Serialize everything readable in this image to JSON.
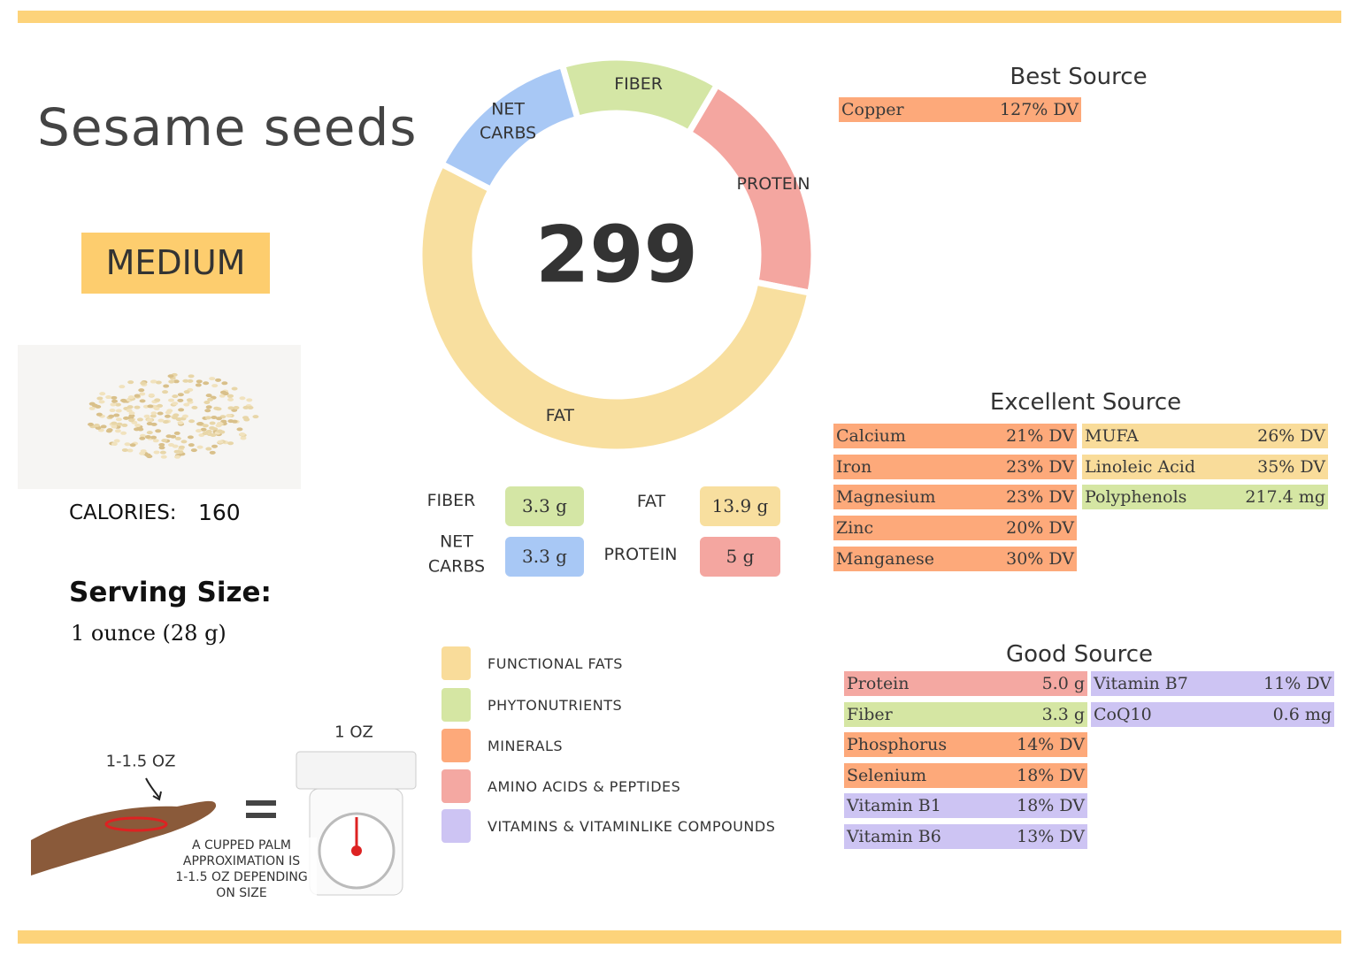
{
  "header": {
    "title": "Sesame seeds",
    "badge": "MEDIUM"
  },
  "calories": {
    "label": "CALORIES:",
    "value": "160"
  },
  "serving": {
    "label": "Serving Size:",
    "value": "1 ounce (28 g)"
  },
  "illustration": {
    "palm_label": "1-1.5 OZ",
    "scale_label": "1 OZ",
    "note": [
      "A CUPPED PALM",
      "APPROXIMATION IS",
      "1-1.5 OZ DEPENDING",
      "ON SIZE"
    ]
  },
  "donut": {
    "center": "299"
  },
  "macros": [
    {
      "name": "FIBER",
      "value": 3.3,
      "value_label": "3.3 g",
      "color": "#d4e6a5"
    },
    {
      "name": "PROTEIN",
      "value": 5,
      "value_label": "5 g",
      "color": "#f4a6a0"
    },
    {
      "name": "FAT",
      "value": 13.9,
      "value_label": "13.9 g",
      "color": "#f8df9f"
    },
    {
      "name": "NET CARBS",
      "value": 3.3,
      "value_label": "3.3 g",
      "color": "#a8c8f5"
    }
  ],
  "legend": [
    {
      "label": "FUNCTIONAL FATS",
      "color": "#f9dc9a"
    },
    {
      "label": "PHYTONUTRIENTS",
      "color": "#d5e6a3"
    },
    {
      "label": "MINERALS",
      "color": "#fda97a"
    },
    {
      "label": "AMINO ACIDS & PEPTIDES",
      "color": "#f4a8a2"
    },
    {
      "label": "VITAMINS & VITAMINLIKE COMPOUNDS",
      "color": "#cdc4f3"
    }
  ],
  "sources": [
    {
      "title": "Best Source",
      "columns": [
        [
          {
            "name": "Copper",
            "amount": "127% DV",
            "color": "#fda97a"
          }
        ]
      ]
    },
    {
      "title": "Excellent Source",
      "columns": [
        [
          {
            "name": "Calcium",
            "amount": "21% DV",
            "color": "#fda97a"
          },
          {
            "name": "Iron",
            "amount": "23% DV",
            "color": "#fda97a"
          },
          {
            "name": "Magnesium",
            "amount": "23% DV",
            "color": "#fda97a"
          },
          {
            "name": "Zinc",
            "amount": "20% DV",
            "color": "#fda97a"
          },
          {
            "name": "Manganese",
            "amount": "30% DV",
            "color": "#fda97a"
          }
        ],
        [
          {
            "name": "MUFA",
            "amount": "26% DV",
            "color": "#f9dc9a"
          },
          {
            "name": "Linoleic Acid",
            "amount": "35% DV",
            "color": "#f9dc9a"
          },
          {
            "name": "Polyphenols",
            "amount": "217.4 mg",
            "color": "#d5e6a3"
          }
        ]
      ]
    },
    {
      "title": "Good Source",
      "columns": [
        [
          {
            "name": "Protein",
            "amount": "5.0 g",
            "color": "#f4a8a2"
          },
          {
            "name": "Fiber",
            "amount": "3.3 g",
            "color": "#d5e6a3"
          },
          {
            "name": "Phosphorus",
            "amount": "14% DV",
            "color": "#fda97a"
          },
          {
            "name": "Selenium",
            "amount": "18% DV",
            "color": "#fda97a"
          },
          {
            "name": "Vitamin B1",
            "amount": "18% DV",
            "color": "#cdc4f3"
          },
          {
            "name": "Vitamin B6",
            "amount": "13% DV",
            "color": "#cdc4f3"
          }
        ],
        [
          {
            "name": "Vitamin B7",
            "amount": "11% DV",
            "color": "#cdc4f3"
          },
          {
            "name": "CoQ10",
            "amount": "0.6 mg",
            "color": "#cdc4f3"
          }
        ]
      ]
    }
  ]
}
